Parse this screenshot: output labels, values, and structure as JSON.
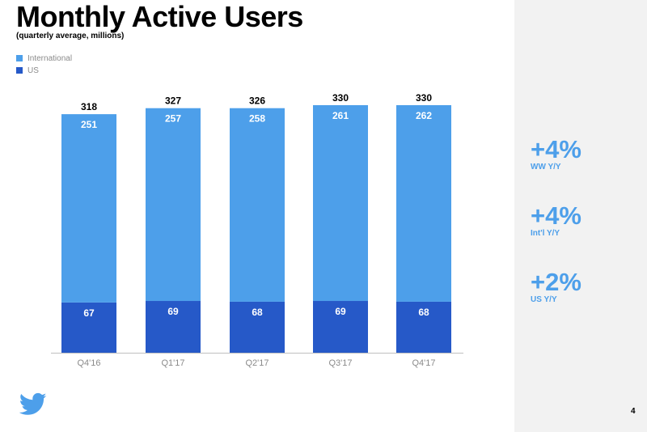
{
  "slide": {
    "title": "Monthly Active Users",
    "subtitle": "(quarterly average, millions)",
    "page_number": "4"
  },
  "legend": [
    {
      "label": "International",
      "color": "#4d9fea"
    },
    {
      "label": "US",
      "color": "#2659c8"
    }
  ],
  "sidebar": {
    "stats": [
      {
        "value": "+4%",
        "label": "WW Y/Y"
      },
      {
        "value": "+4%",
        "label": "Int'l Y/Y"
      },
      {
        "value": "+2%",
        "label": "US Y/Y"
      }
    ]
  },
  "colors": {
    "international": "#4d9fea",
    "us": "#2659c8",
    "accent": "#4d9fea",
    "axis": "#bfbfbf",
    "tick_label": "#8a8a8a",
    "sidebar_bg": "#f2f2f2",
    "logo": "#4d9fea"
  },
  "chart_data": {
    "type": "bar",
    "stacked": true,
    "title": "Monthly Active Users",
    "subtitle": "(quarterly average, millions)",
    "categories": [
      "Q4'16",
      "Q1'17",
      "Q2'17",
      "Q3'17",
      "Q4'17"
    ],
    "series": [
      {
        "name": "US",
        "values": [
          67,
          69,
          68,
          69,
          68
        ]
      },
      {
        "name": "International",
        "values": [
          251,
          257,
          258,
          261,
          262
        ]
      }
    ],
    "totals": [
      318,
      327,
      326,
      330,
      330
    ],
    "xlabel": "",
    "ylabel": "",
    "ylim": [
      0,
      330
    ],
    "grid": false,
    "legend_position": "top-left"
  }
}
